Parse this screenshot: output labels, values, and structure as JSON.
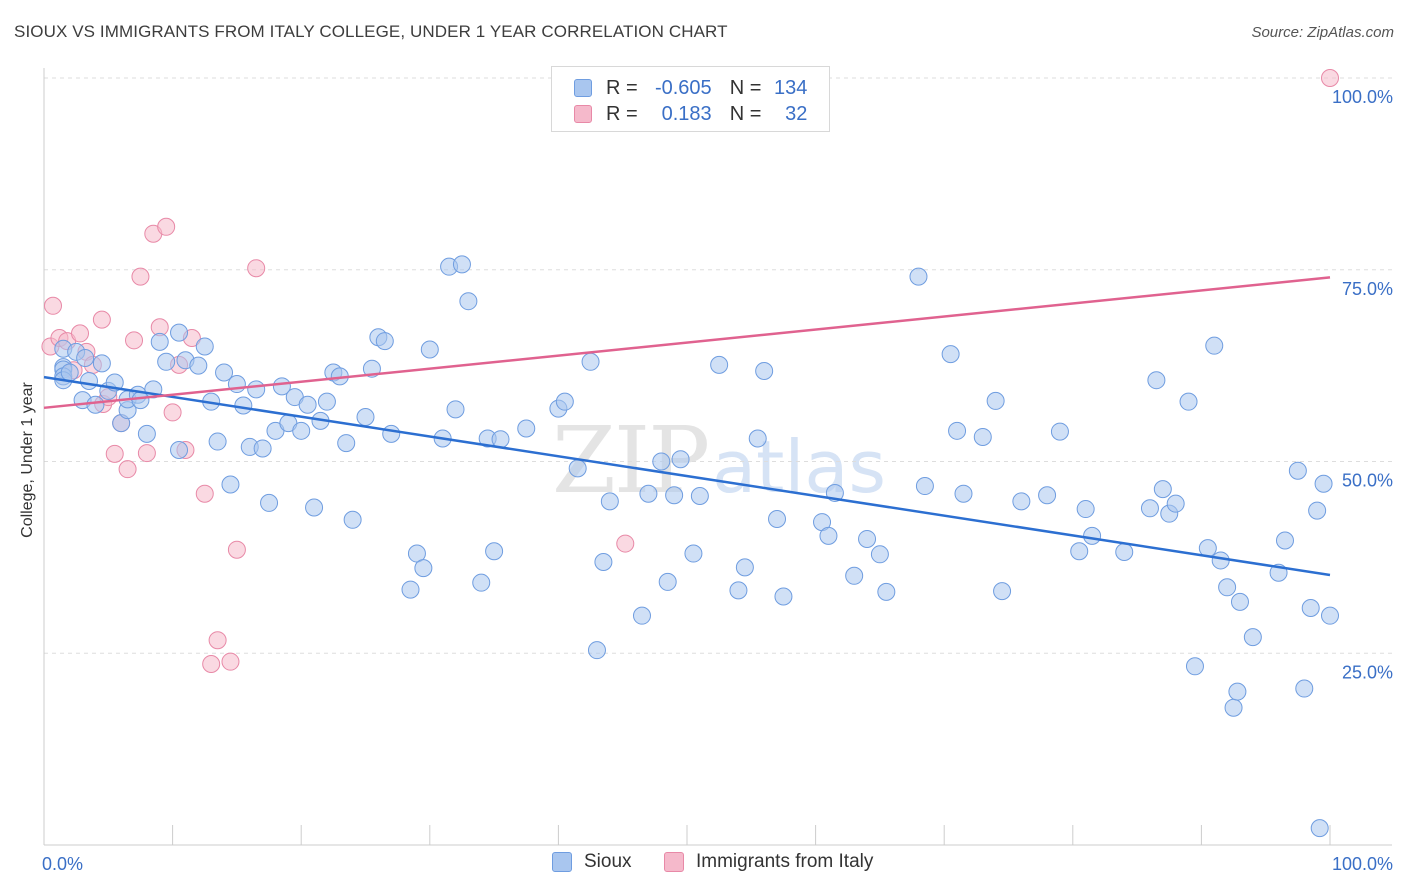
{
  "title": "SIOUX VS IMMIGRANTS FROM ITALY COLLEGE, UNDER 1 YEAR CORRELATION CHART",
  "source": "Source: ZipAtlas.com",
  "watermark": {
    "zip": "ZIP",
    "atlas": "atlas"
  },
  "legend": {
    "rows": [
      {
        "r_label": "R =",
        "r_value": "-0.605",
        "n_label": "N =",
        "n_value": "134"
      },
      {
        "r_label": "R =",
        "r_value": "0.183",
        "n_label": "N =",
        "n_value": "32"
      }
    ]
  },
  "bottom_legend": {
    "series1": "Sioux",
    "series2": "Immigrants from Italy"
  },
  "colors": {
    "sioux_fill": "#a9c6ef",
    "sioux_stroke": "#6f9de0",
    "sioux_line": "#2c6fd1",
    "italy_fill": "#f5b9cb",
    "italy_stroke": "#e889a7",
    "italy_line": "#e0628f",
    "tick_label": "#3a6fc6",
    "grid": "#dddddd"
  },
  "chart_data": {
    "type": "scatter",
    "title": "SIOUX VS IMMIGRANTS FROM ITALY COLLEGE, UNDER 1 YEAR CORRELATION CHART",
    "xlabel": "",
    "ylabel": "College, Under 1 year",
    "xlim": [
      0,
      100
    ],
    "ylim": [
      0,
      100
    ],
    "x_tick_labels": [
      "0.0%",
      "100.0%"
    ],
    "y_ticks": [
      25,
      50,
      75,
      100
    ],
    "y_tick_labels": [
      "25.0%",
      "50.0%",
      "75.0%",
      "100.0%"
    ],
    "grid": "horizontal dashed",
    "legend_placement": "top-center",
    "series": [
      {
        "name": "Sioux",
        "r": -0.605,
        "n": 134,
        "trend": {
          "x": [
            0,
            100
          ],
          "y": [
            61.0,
            35.2
          ]
        },
        "points": [
          [
            1.5,
            64.7
          ],
          [
            1.5,
            62.3
          ],
          [
            1.5,
            62.0
          ],
          [
            1.5,
            61.1
          ],
          [
            1.5,
            60.6
          ],
          [
            2.0,
            61.6
          ],
          [
            2.5,
            64.3
          ],
          [
            3.0,
            58.0
          ],
          [
            3.2,
            63.5
          ],
          [
            3.5,
            60.5
          ],
          [
            4.0,
            57.4
          ],
          [
            4.5,
            62.8
          ],
          [
            5.0,
            59.2
          ],
          [
            5.5,
            60.3
          ],
          [
            6.0,
            55.0
          ],
          [
            6.5,
            56.7
          ],
          [
            6.5,
            58.1
          ],
          [
            7.3,
            58.7
          ],
          [
            7.5,
            58.0
          ],
          [
            8.0,
            53.6
          ],
          [
            8.5,
            59.4
          ],
          [
            9.0,
            65.6
          ],
          [
            9.5,
            63.0
          ],
          [
            10.5,
            51.5
          ],
          [
            10.5,
            66.8
          ],
          [
            11.0,
            63.2
          ],
          [
            12.0,
            62.5
          ],
          [
            12.5,
            65.0
          ],
          [
            13.0,
            57.8
          ],
          [
            13.5,
            52.6
          ],
          [
            14.0,
            61.6
          ],
          [
            14.5,
            47.0
          ],
          [
            15.0,
            60.1
          ],
          [
            15.5,
            57.3
          ],
          [
            16.0,
            51.9
          ],
          [
            16.5,
            59.4
          ],
          [
            17.0,
            51.7
          ],
          [
            17.5,
            44.6
          ],
          [
            18.0,
            54.0
          ],
          [
            18.5,
            59.8
          ],
          [
            19.0,
            55.0
          ],
          [
            19.5,
            58.4
          ],
          [
            20.0,
            54.0
          ],
          [
            20.5,
            57.4
          ],
          [
            21.0,
            44.0
          ],
          [
            21.5,
            55.3
          ],
          [
            22.0,
            57.8
          ],
          [
            22.5,
            61.6
          ],
          [
            23.0,
            61.1
          ],
          [
            23.5,
            52.4
          ],
          [
            24.0,
            42.4
          ],
          [
            25.0,
            55.8
          ],
          [
            25.5,
            62.1
          ],
          [
            26.0,
            66.2
          ],
          [
            26.5,
            65.7
          ],
          [
            27.0,
            53.6
          ],
          [
            29.0,
            38.0
          ],
          [
            28.5,
            33.3
          ],
          [
            29.5,
            36.1
          ],
          [
            30.0,
            64.6
          ],
          [
            31.0,
            53.0
          ],
          [
            31.5,
            75.4
          ],
          [
            32.0,
            56.8
          ],
          [
            32.5,
            75.7
          ],
          [
            33.0,
            70.9
          ],
          [
            34.0,
            34.2
          ],
          [
            34.5,
            53.0
          ],
          [
            35.0,
            38.3
          ],
          [
            35.5,
            52.9
          ],
          [
            37.5,
            54.3
          ],
          [
            40.0,
            56.9
          ],
          [
            40.5,
            57.8
          ],
          [
            41.5,
            49.1
          ],
          [
            42.5,
            63.0
          ],
          [
            43.5,
            36.9
          ],
          [
            43.0,
            25.4
          ],
          [
            44.0,
            44.8
          ],
          [
            46.5,
            29.9
          ],
          [
            47.0,
            45.8
          ],
          [
            48.0,
            50.0
          ],
          [
            48.5,
            34.3
          ],
          [
            49.0,
            45.6
          ],
          [
            49.5,
            50.3
          ],
          [
            50.5,
            38.0
          ],
          [
            51.0,
            45.5
          ],
          [
            52.5,
            62.6
          ],
          [
            54.0,
            33.2
          ],
          [
            54.5,
            36.2
          ],
          [
            55.5,
            53.0
          ],
          [
            56.0,
            61.8
          ],
          [
            57.0,
            42.5
          ],
          [
            57.5,
            32.4
          ],
          [
            60.5,
            42.1
          ],
          [
            61.0,
            40.3
          ],
          [
            61.5,
            45.9
          ],
          [
            63.0,
            35.1
          ],
          [
            64.0,
            39.9
          ],
          [
            65.5,
            33.0
          ],
          [
            65.0,
            37.9
          ],
          [
            68.0,
            74.1
          ],
          [
            68.5,
            46.8
          ],
          [
            70.5,
            64.0
          ],
          [
            71.0,
            54.0
          ],
          [
            71.5,
            45.8
          ],
          [
            73.0,
            53.2
          ],
          [
            74.0,
            57.9
          ],
          [
            74.5,
            33.1
          ],
          [
            76.0,
            44.8
          ],
          [
            78.0,
            45.6
          ],
          [
            79.0,
            53.9
          ],
          [
            80.5,
            38.3
          ],
          [
            81.0,
            43.8
          ],
          [
            81.5,
            40.3
          ],
          [
            84.0,
            38.2
          ],
          [
            86.0,
            43.9
          ],
          [
            86.5,
            60.6
          ],
          [
            87.0,
            46.4
          ],
          [
            87.5,
            43.2
          ],
          [
            88.0,
            44.5
          ],
          [
            89.0,
            57.8
          ],
          [
            89.5,
            23.3
          ],
          [
            90.5,
            38.7
          ],
          [
            91.0,
            65.1
          ],
          [
            91.5,
            37.1
          ],
          [
            92.0,
            33.6
          ],
          [
            92.5,
            17.9
          ],
          [
            92.8,
            20.0
          ],
          [
            93.0,
            31.7
          ],
          [
            94.0,
            27.1
          ],
          [
            96.0,
            35.5
          ],
          [
            96.5,
            39.7
          ],
          [
            97.5,
            48.8
          ],
          [
            98.5,
            30.9
          ],
          [
            100.0,
            29.9
          ],
          [
            99.5,
            47.1
          ],
          [
            98.0,
            20.4
          ],
          [
            99.0,
            43.6
          ],
          [
            99.2,
            2.2
          ]
        ]
      },
      {
        "name": "Immigrants from Italy",
        "r": 0.183,
        "n": 32,
        "trend": {
          "x": [
            0,
            100
          ],
          "y": [
            57.0,
            74.0
          ]
        },
        "points": [
          [
            0.5,
            65.0
          ],
          [
            0.7,
            70.3
          ],
          [
            1.2,
            66.1
          ],
          [
            1.8,
            65.7
          ],
          [
            2.3,
            61.9
          ],
          [
            2.8,
            66.7
          ],
          [
            3.3,
            64.3
          ],
          [
            3.8,
            62.6
          ],
          [
            4.5,
            68.5
          ],
          [
            4.6,
            57.5
          ],
          [
            5.0,
            58.4
          ],
          [
            5.5,
            51.0
          ],
          [
            6.0,
            55.0
          ],
          [
            6.5,
            49.0
          ],
          [
            7.0,
            65.8
          ],
          [
            7.5,
            74.1
          ],
          [
            8.0,
            51.1
          ],
          [
            8.5,
            79.7
          ],
          [
            9.0,
            67.5
          ],
          [
            9.5,
            80.6
          ],
          [
            10.0,
            56.4
          ],
          [
            10.5,
            62.6
          ],
          [
            11.0,
            51.5
          ],
          [
            11.5,
            66.1
          ],
          [
            12.5,
            45.8
          ],
          [
            13.0,
            23.6
          ],
          [
            13.5,
            26.7
          ],
          [
            14.5,
            23.9
          ],
          [
            15.0,
            38.5
          ],
          [
            16.5,
            75.2
          ],
          [
            45.2,
            39.3
          ],
          [
            100.0,
            100.0
          ]
        ]
      }
    ]
  }
}
